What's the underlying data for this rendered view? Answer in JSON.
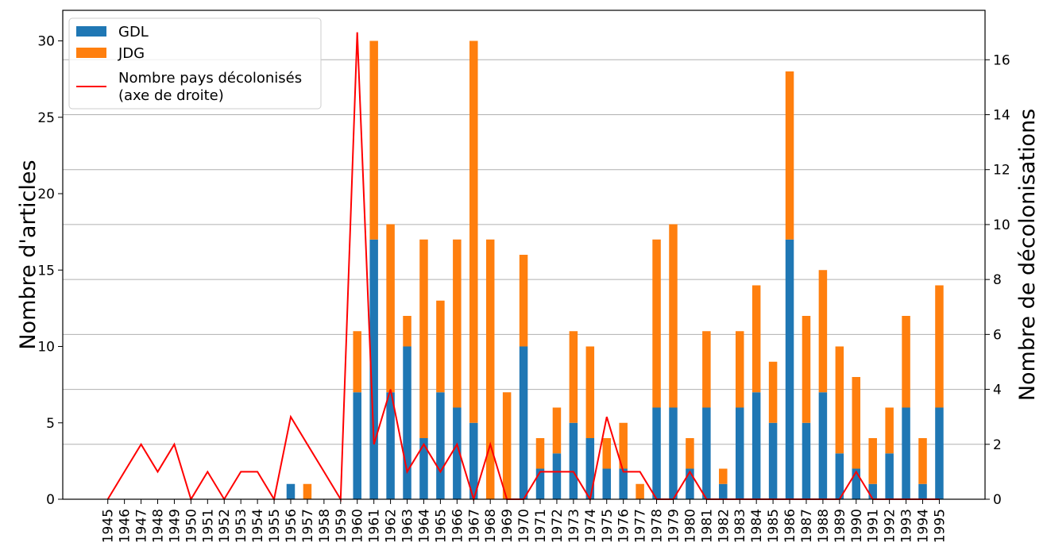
{
  "chart_data": {
    "type": "bar",
    "stacked": true,
    "categories": [
      "1945",
      "1946",
      "1947",
      "1948",
      "1949",
      "1950",
      "1951",
      "1952",
      "1953",
      "1954",
      "1955",
      "1956",
      "1957",
      "1958",
      "1959",
      "1960",
      "1961",
      "1962",
      "1963",
      "1964",
      "1965",
      "1966",
      "1967",
      "1968",
      "1969",
      "1970",
      "1971",
      "1972",
      "1973",
      "1974",
      "1975",
      "1976",
      "1977",
      "1978",
      "1979",
      "1980",
      "1981",
      "1982",
      "1983",
      "1984",
      "1985",
      "1986",
      "1987",
      "1988",
      "1989",
      "1990",
      "1991",
      "1992",
      "1993",
      "1994",
      "1995"
    ],
    "series": [
      {
        "name": "GDL",
        "color": "#1f77b4",
        "axis": "left",
        "values": [
          0,
          0,
          0,
          0,
          0,
          0,
          0,
          0,
          0,
          0,
          0,
          1,
          0,
          0,
          0,
          7,
          17,
          7,
          10,
          4,
          7,
          6,
          5,
          0,
          0,
          10,
          2,
          3,
          5,
          4,
          2,
          2,
          0,
          6,
          6,
          2,
          6,
          1,
          6,
          7,
          5,
          17,
          5,
          7,
          3,
          2,
          1,
          3,
          6,
          1,
          6
        ]
      },
      {
        "name": "JDG",
        "color": "#ff7f0e",
        "axis": "left",
        "values": [
          0,
          0,
          0,
          0,
          0,
          0,
          0,
          0,
          0,
          0,
          0,
          0,
          1,
          0,
          0,
          4,
          13,
          11,
          2,
          13,
          6,
          11,
          25,
          17,
          7,
          6,
          2,
          3,
          6,
          6,
          2,
          3,
          1,
          11,
          12,
          2,
          5,
          1,
          5,
          7,
          4,
          11,
          7,
          8,
          7,
          6,
          3,
          3,
          6,
          3,
          8
        ]
      },
      {
        "name": "Nombre pays décolonisés\n(axe de droite)",
        "color": "#ff0000",
        "axis": "right",
        "type": "line",
        "values": [
          0,
          1,
          2,
          1,
          2,
          0,
          1,
          0,
          1,
          1,
          0,
          3,
          2,
          1,
          0,
          17,
          2,
          4,
          1,
          2,
          1,
          2,
          0,
          2,
          0,
          0,
          1,
          1,
          1,
          0,
          3,
          1,
          1,
          0,
          0,
          1,
          0,
          0,
          0,
          0,
          0,
          0,
          0,
          0,
          0,
          1,
          0,
          0,
          0,
          0,
          0
        ]
      }
    ],
    "ylabel": "Nombre d'articles",
    "y2label": "Nombre de décolonisations",
    "ylim": [
      0,
      32
    ],
    "y2lim": [
      0,
      17.8
    ],
    "yticks": [
      "0",
      "5",
      "10",
      "15",
      "20",
      "25",
      "30"
    ],
    "y2ticks": [
      "0",
      "2",
      "4",
      "6",
      "8",
      "10",
      "12",
      "14",
      "16"
    ],
    "grid": "right-axis horizontal",
    "legend_position": "top-left",
    "legend": [
      "GDL",
      "JDG",
      "Nombre pays décolonisés",
      "(axe de droite)"
    ]
  }
}
